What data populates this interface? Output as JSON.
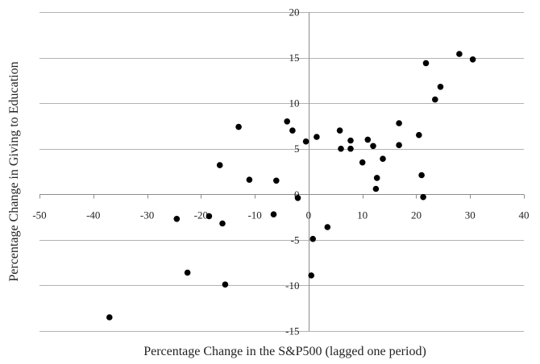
{
  "chart_data": {
    "type": "scatter",
    "title": "",
    "xlabel": "Percentage Change in the S&P500 (lagged one period)",
    "ylabel": "Percentage Change in Giving to Education",
    "xlim": [
      -50,
      40
    ],
    "ylim": [
      -15,
      20
    ],
    "x_ticks": [
      -50,
      -40,
      -30,
      -20,
      -10,
      0,
      10,
      20,
      30,
      40
    ],
    "y_ticks": [
      -15,
      -10,
      -5,
      0,
      5,
      10,
      15,
      20
    ],
    "x_tick_labels": [
      "-50",
      "-40",
      "-30",
      "-20",
      "-10",
      "0",
      "10",
      "20",
      "30",
      "40"
    ],
    "y_tick_labels": [
      "-15",
      "-10",
      "-5",
      "0",
      "5",
      "10",
      "15",
      "20"
    ],
    "grid": {
      "horizontal": true,
      "vertical": false
    },
    "marker_color": "#000000",
    "grid_color": "#b3b3b3",
    "axis_color": "#8c8c8c",
    "points": [
      {
        "x": -37.0,
        "y": -13.5
      },
      {
        "x": -22.5,
        "y": -8.6
      },
      {
        "x": -24.5,
        "y": -2.7
      },
      {
        "x": -18.5,
        "y": -2.4
      },
      {
        "x": -16.5,
        "y": 3.2
      },
      {
        "x": -16.0,
        "y": -3.2
      },
      {
        "x": -15.5,
        "y": -9.9
      },
      {
        "x": -13.0,
        "y": 7.4
      },
      {
        "x": -11.0,
        "y": 1.6
      },
      {
        "x": -6.5,
        "y": -2.2
      },
      {
        "x": -6.0,
        "y": 1.5
      },
      {
        "x": -4.0,
        "y": 8.0
      },
      {
        "x": -3.0,
        "y": 7.0
      },
      {
        "x": -2.0,
        "y": -0.4
      },
      {
        "x": -0.5,
        "y": 5.8
      },
      {
        "x": 0.5,
        "y": -8.9
      },
      {
        "x": 0.8,
        "y": -4.9
      },
      {
        "x": 1.5,
        "y": 6.3
      },
      {
        "x": 3.5,
        "y": -3.6
      },
      {
        "x": 5.8,
        "y": 7.0
      },
      {
        "x": 6.0,
        "y": 5.0
      },
      {
        "x": 7.8,
        "y": 5.9
      },
      {
        "x": 7.8,
        "y": 5.0
      },
      {
        "x": 10.0,
        "y": 3.5
      },
      {
        "x": 11.0,
        "y": 6.0
      },
      {
        "x": 12.0,
        "y": 5.3
      },
      {
        "x": 12.5,
        "y": 0.6
      },
      {
        "x": 12.7,
        "y": 1.8
      },
      {
        "x": 13.8,
        "y": 3.9
      },
      {
        "x": 16.8,
        "y": 7.8
      },
      {
        "x": 16.8,
        "y": 5.4
      },
      {
        "x": 20.5,
        "y": 6.5
      },
      {
        "x": 21.0,
        "y": 2.1
      },
      {
        "x": 21.3,
        "y": -0.3
      },
      {
        "x": 21.8,
        "y": 14.4
      },
      {
        "x": 23.5,
        "y": 10.4
      },
      {
        "x": 24.5,
        "y": 11.8
      },
      {
        "x": 28.0,
        "y": 15.4
      },
      {
        "x": 30.5,
        "y": 14.8
      }
    ]
  }
}
